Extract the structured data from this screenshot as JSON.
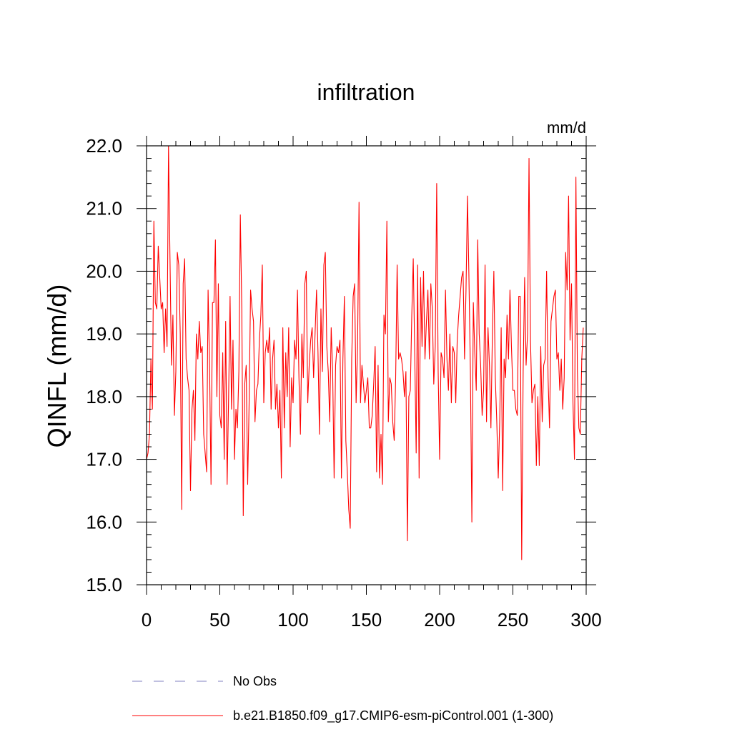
{
  "chart_data": {
    "type": "line",
    "title": "infiltration",
    "units_label": "mm/d",
    "xlabel": "",
    "ylabel": "QINFL  (mm/d)",
    "xlim": [
      0,
      300
    ],
    "ylim": [
      15,
      22
    ],
    "x_ticks": [
      0,
      50,
      100,
      150,
      200,
      250,
      300
    ],
    "x_tick_labels": [
      "0",
      "50",
      "100",
      "150",
      "200",
      "250",
      "300"
    ],
    "y_ticks": [
      15,
      16,
      17,
      18,
      19,
      20,
      21,
      22
    ],
    "y_tick_labels": [
      "15.0",
      "16.0",
      "17.0",
      "18.0",
      "19.0",
      "20.0",
      "21.0",
      "22.0"
    ],
    "grid": false,
    "legend_position": "bottom",
    "colors": {
      "model": "#ff0000",
      "obs": "#8080c0"
    },
    "series": [
      {
        "name": "No Obs",
        "style": "dashed",
        "color": "#8080c0",
        "values": []
      },
      {
        "name": "b.e21.B1850.f09_g17.CMIP6-esm-piControl.001 (1-300)",
        "style": "solid",
        "color": "#ff0000",
        "x_start": 1,
        "values": [
          17.0,
          17.1,
          17.4,
          18.6,
          17.8,
          20.8,
          19.5,
          19.4,
          20.4,
          19.9,
          19.4,
          19.5,
          18.7,
          19.4,
          18.8,
          22.0,
          20.2,
          18.5,
          19.3,
          17.7,
          18.4,
          20.3,
          20.1,
          19.0,
          16.2,
          19.8,
          20.2,
          18.6,
          18.3,
          18.1,
          16.5,
          17.8,
          18.1,
          17.3,
          19.0,
          18.6,
          19.2,
          18.7,
          18.8,
          17.4,
          17.1,
          16.8,
          19.7,
          18.5,
          16.6,
          19.5,
          19.5,
          20.5,
          18.0,
          19.8,
          17.7,
          17.5,
          18.7,
          17.0,
          19.2,
          16.6,
          18.0,
          19.6,
          17.8,
          18.9,
          17.0,
          17.8,
          17.5,
          18.4,
          20.9,
          19.4,
          16.1,
          18.2,
          18.5,
          16.6,
          17.9,
          19.7,
          19.4,
          19.2,
          17.6,
          18.1,
          18.2,
          18.9,
          19.3,
          20.1,
          17.9,
          18.7,
          18.9,
          18.7,
          19.1,
          17.8,
          18.6,
          18.9,
          17.8,
          18.2,
          17.5,
          18.1,
          16.7,
          19.1,
          17.5,
          18.7,
          18.0,
          19.1,
          17.2,
          18.3,
          17.9,
          18.9,
          18.6,
          19.7,
          18.3,
          17.4,
          19.0,
          18.3,
          19.8,
          20.0,
          17.9,
          18.5,
          18.9,
          19.1,
          18.3,
          19.0,
          19.7,
          18.7,
          17.4,
          19.4,
          18.4,
          20.1,
          20.3,
          18.8,
          18.4,
          17.6,
          19.1,
          18.4,
          16.7,
          18.5,
          18.8,
          18.7,
          18.9,
          16.7,
          18.6,
          19.6,
          17.3,
          16.8,
          16.2,
          15.9,
          18.6,
          19.6,
          19.8,
          17.9,
          18.8,
          21.1,
          17.9,
          18.5,
          18.2,
          17.9,
          18.1,
          18.3,
          17.5,
          17.5,
          17.7,
          18.2,
          18.8,
          16.8,
          18.5,
          16.7,
          17.4,
          16.6,
          19.3,
          19.0,
          20.8,
          17.6,
          18.3,
          18.2,
          17.6,
          17.3,
          18.3,
          20.1,
          18.6,
          18.7,
          18.6,
          18.4,
          18.0,
          18.4,
          15.7,
          18.0,
          18.1,
          19.3,
          20.2,
          18.7,
          17.1,
          20.1,
          16.7,
          19.9,
          18.8,
          20.0,
          18.6,
          19.2,
          19.7,
          18.6,
          19.8,
          19.4,
          18.2,
          18.8,
          21.4,
          18.4,
          17.0,
          18.7,
          18.6,
          18.3,
          19.7,
          18.6,
          18.1,
          19.0,
          17.9,
          18.8,
          18.7,
          17.9,
          18.9,
          19.3,
          19.6,
          19.9,
          20.0,
          18.6,
          19.7,
          21.2,
          19.9,
          18.4,
          16.0,
          19.5,
          18.7,
          18.1,
          20.5,
          19.0,
          18.5,
          17.7,
          18.1,
          20.1,
          17.6,
          19.1,
          18.5,
          17.5,
          19.0,
          20.0,
          18.3,
          17.6,
          16.7,
          17.6,
          19.1,
          16.5,
          18.6,
          18.3,
          19.3,
          18.6,
          19.7,
          18.8,
          18.1,
          18.1,
          17.8,
          17.7,
          19.6,
          19.6,
          15.4,
          18.4,
          19.9,
          18.5,
          19.0,
          21.8,
          18.9,
          17.9,
          18.1,
          18.2,
          16.9,
          18.0,
          16.9,
          18.8,
          17.6,
          18.5,
          18.6,
          20.0,
          18.3,
          17.5,
          19.2,
          19.4,
          19.6,
          19.7,
          18.6,
          18.7,
          18.1,
          18.6,
          17.8,
          18.3,
          20.3,
          19.7,
          21.2,
          18.9,
          19.8,
          17.9,
          17.0,
          21.5,
          18.4,
          17.5,
          17.4,
          18.6,
          19.1
        ]
      }
    ]
  }
}
